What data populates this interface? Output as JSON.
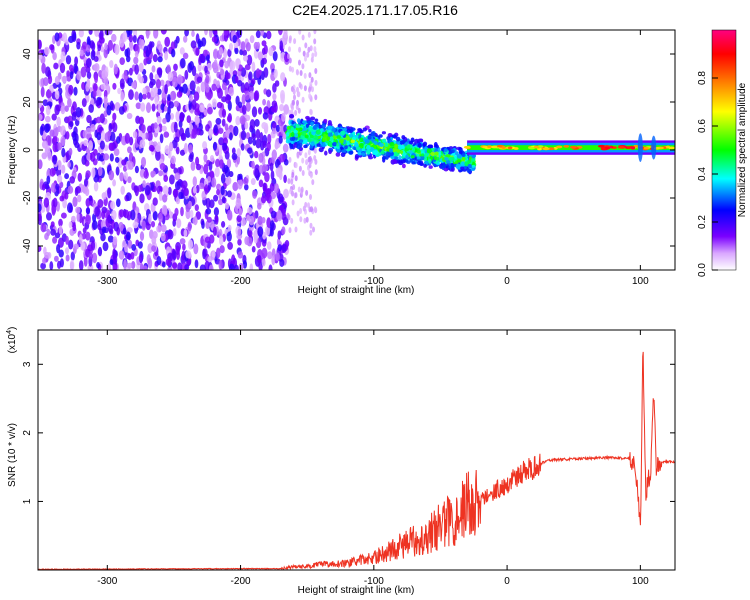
{
  "title": "C2E4.2025.171.17.05.R16",
  "chart_data": [
    {
      "type": "heatmap",
      "xlabel": "Height of straight line (km)",
      "ylabel": "Frequency (Hz)",
      "xlim": [
        -352,
        126
      ],
      "ylim": [
        -50,
        50
      ],
      "xticks": [
        -300,
        -200,
        -100,
        0,
        100
      ],
      "yticks": [
        -40,
        -20,
        0,
        20,
        40
      ],
      "colorbar": {
        "label": "Normalized spectral amplitude",
        "range": [
          0,
          1
        ],
        "ticks": [
          "0.0",
          "0.2",
          "0.4",
          "0.6",
          "0.8"
        ],
        "colors": [
          "#ffffff",
          "#7a00ff",
          "#0000ff",
          "#00ffff",
          "#00ff00",
          "#ffff00",
          "#ff8000",
          "#ff0000",
          "#ff0080"
        ]
      },
      "regions": [
        {
          "name": "noise",
          "x": [
            -352,
            -165
          ],
          "freq": [
            -50,
            50
          ],
          "amplitude": 0.12
        },
        {
          "name": "sparse noise",
          "x": [
            -165,
            -145
          ],
          "freq": [
            -35,
            50
          ],
          "amplitude": 0.05
        },
        {
          "name": "signal band",
          "x": [
            -165,
            -30
          ],
          "freq_center": [
            8,
            -5
          ],
          "amplitude": 0.45
        },
        {
          "name": "stable band",
          "x": [
            -30,
            126
          ],
          "freq_center": [
            1,
            1
          ],
          "amplitude": 0.9
        }
      ]
    },
    {
      "type": "line",
      "xlabel": "Height of straight line (km)",
      "ylabel": "SNR (10 * v/v)",
      "y_multiplier": "(x10",
      "y_multiplier_exp": "4",
      "y_multiplier_close": ")",
      "xlim": [
        -352,
        126
      ],
      "ylim": [
        0,
        3.5
      ],
      "xticks": [
        -300,
        -200,
        -100,
        0,
        100
      ],
      "yticks": [
        1,
        2,
        3
      ],
      "color": "#ee3322",
      "x": [
        -352,
        -200,
        -170,
        -160,
        -150,
        -140,
        -120,
        -100,
        -80,
        -60,
        -50,
        -40,
        -30,
        -20,
        -10,
        0,
        10,
        20,
        30,
        50,
        70,
        90,
        95,
        98,
        100,
        102,
        104,
        108,
        110,
        112,
        115,
        120,
        126
      ],
      "y": [
        0.01,
        0.02,
        0.02,
        0.05,
        0.05,
        0.08,
        0.1,
        0.18,
        0.35,
        0.5,
        0.65,
        0.75,
        0.95,
        1.0,
        1.15,
        1.25,
        1.4,
        1.5,
        1.6,
        1.62,
        1.64,
        1.63,
        1.6,
        1.2,
        0.55,
        3.3,
        1.1,
        1.5,
        2.6,
        1.5,
        1.55,
        1.58,
        1.57
      ]
    }
  ]
}
